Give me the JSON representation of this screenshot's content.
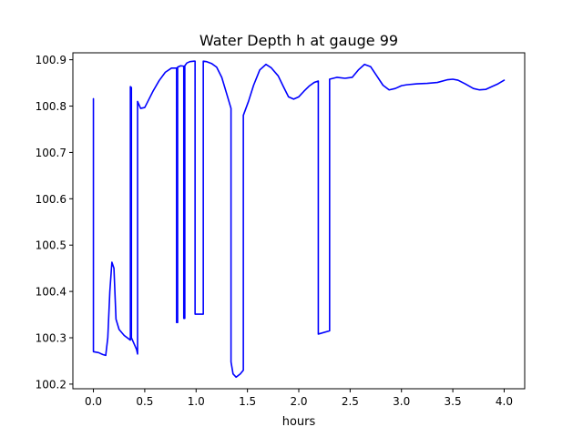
{
  "chart_data": {
    "type": "line",
    "title": "Water Depth h at gauge 99",
    "xlabel": "hours",
    "ylabel": "",
    "xlim": [
      -0.2,
      4.2
    ],
    "ylim": [
      100.19,
      100.915
    ],
    "xticks": [
      0.0,
      0.5,
      1.0,
      1.5,
      2.0,
      2.5,
      3.0,
      3.5,
      4.0
    ],
    "xtick_labels": [
      "0.0",
      "0.5",
      "1.0",
      "1.5",
      "2.0",
      "2.5",
      "3.0",
      "3.5",
      "4.0"
    ],
    "yticks": [
      100.2,
      100.3,
      100.4,
      100.5,
      100.6,
      100.7,
      100.8,
      100.9
    ],
    "ytick_labels": [
      "100.2",
      "100.3",
      "100.4",
      "100.5",
      "100.6",
      "100.7",
      "100.8",
      "100.9"
    ],
    "grid": false,
    "legend": "none",
    "series": [
      {
        "color": "#0000ff",
        "x": [
          0.0,
          0.0,
          0.05,
          0.09,
          0.12,
          0.14,
          0.16,
          0.18,
          0.2,
          0.22,
          0.25,
          0.3,
          0.36,
          0.36,
          0.37,
          0.37,
          0.39,
          0.42,
          0.43,
          0.43,
          0.46,
          0.5,
          0.53,
          0.58,
          0.64,
          0.7,
          0.76,
          0.81,
          0.81,
          0.82,
          0.82,
          0.85,
          0.88,
          0.88,
          0.89,
          0.89,
          0.91,
          0.94,
          0.98,
          0.99,
          0.99,
          1.07,
          1.07,
          1.1,
          1.15,
          1.2,
          1.25,
          1.3,
          1.34,
          1.34,
          1.36,
          1.39,
          1.43,
          1.46,
          1.46,
          1.51,
          1.56,
          1.62,
          1.68,
          1.73,
          1.8,
          1.85,
          1.9,
          1.95,
          2.0,
          2.05,
          2.1,
          2.15,
          2.19,
          2.19,
          2.3,
          2.3,
          2.37,
          2.45,
          2.52,
          2.58,
          2.64,
          2.7,
          2.76,
          2.82,
          2.88,
          2.94,
          3.0,
          3.05,
          3.15,
          3.25,
          3.35,
          3.45,
          3.5,
          3.55,
          3.62,
          3.7,
          3.76,
          3.82,
          3.88,
          3.94,
          4.0
        ],
        "y": [
          100.816,
          100.27,
          100.268,
          100.264,
          100.262,
          100.3,
          100.4,
          100.463,
          100.45,
          100.34,
          100.318,
          100.305,
          100.295,
          100.842,
          100.84,
          100.3,
          100.29,
          100.275,
          100.265,
          100.81,
          100.795,
          100.797,
          100.81,
          100.832,
          100.855,
          100.873,
          100.882,
          100.882,
          100.333,
          100.333,
          100.884,
          100.887,
          100.886,
          100.342,
          100.342,
          100.887,
          100.893,
          100.896,
          100.897,
          100.897,
          100.351,
          100.351,
          100.897,
          100.896,
          100.892,
          100.884,
          100.862,
          100.825,
          100.795,
          100.248,
          100.222,
          100.215,
          100.222,
          100.23,
          100.78,
          100.81,
          100.845,
          100.878,
          100.89,
          100.883,
          100.865,
          100.842,
          100.82,
          100.815,
          100.82,
          100.832,
          100.843,
          100.851,
          100.854,
          100.308,
          100.315,
          100.858,
          100.862,
          100.86,
          100.862,
          100.878,
          100.89,
          100.885,
          100.865,
          100.845,
          100.835,
          100.838,
          100.844,
          100.846,
          100.848,
          100.849,
          100.851,
          100.857,
          100.858,
          100.856,
          100.848,
          100.838,
          100.835,
          100.836,
          100.842,
          100.848,
          100.856
        ]
      }
    ]
  }
}
